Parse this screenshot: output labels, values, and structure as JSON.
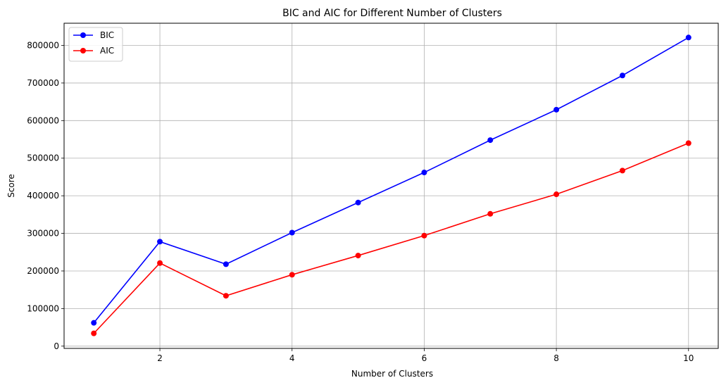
{
  "chart_data": {
    "type": "line",
    "title": "BIC and AIC for Different Number of Clusters",
    "xlabel": "Number of Clusters",
    "ylabel": "Score",
    "x": [
      1,
      2,
      3,
      4,
      5,
      6,
      7,
      8,
      9,
      10
    ],
    "xlim": [
      0.55,
      10.45
    ],
    "ylim": [
      -6000,
      859000
    ],
    "xticks": [
      2,
      4,
      6,
      8,
      10
    ],
    "yticks": [
      0,
      100000,
      200000,
      300000,
      400000,
      500000,
      600000,
      700000,
      800000
    ],
    "grid": true,
    "legend_position": "top-left",
    "series": [
      {
        "name": "BIC",
        "color": "#0000ff",
        "marker": "circle",
        "values": [
          62000,
          278000,
          218000,
          302000,
          382000,
          462000,
          548000,
          629000,
          720000,
          821000
        ]
      },
      {
        "name": "AIC",
        "color": "#ff0000",
        "marker": "circle",
        "values": [
          34000,
          221000,
          134000,
          190000,
          241000,
          294000,
          352000,
          404000,
          467000,
          540000
        ]
      }
    ]
  }
}
